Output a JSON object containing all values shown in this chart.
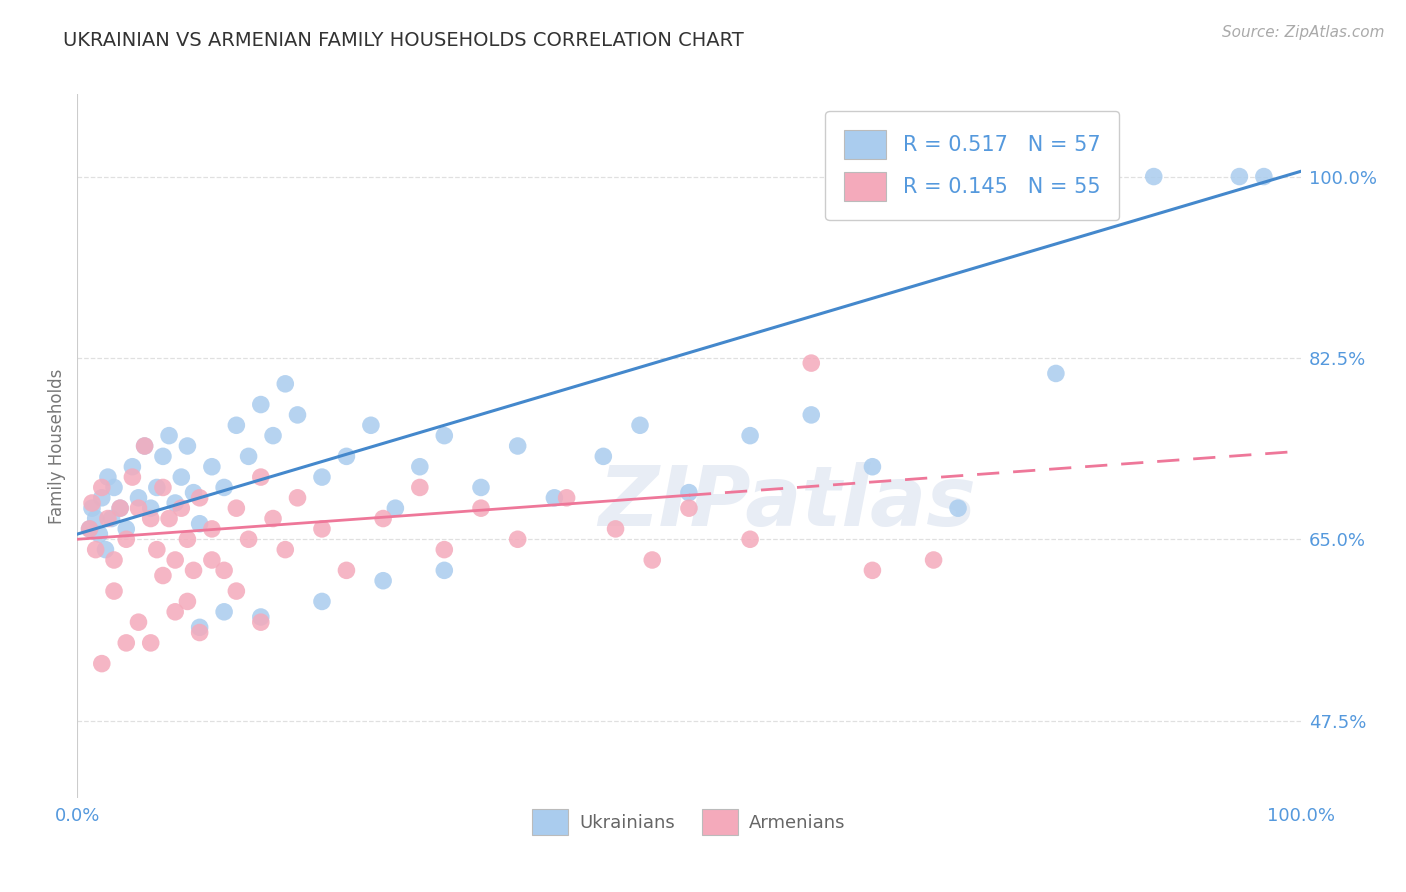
{
  "title": "UKRAINIAN VS ARMENIAN FAMILY HOUSEHOLDS CORRELATION CHART",
  "source": "Source: ZipAtlas.com",
  "ylabel": "Family Households",
  "xlim": [
    0,
    100
  ],
  "ylim": [
    40,
    108
  ],
  "yticks": [
    47.5,
    65.0,
    82.5,
    100.0
  ],
  "xtick_labels": [
    "0.0%",
    "100.0%"
  ],
  "ytick_labels": [
    "47.5%",
    "65.0%",
    "82.5%",
    "100.0%"
  ],
  "blue_R": 0.517,
  "blue_N": 57,
  "pink_R": 0.145,
  "pink_N": 55,
  "blue_color": "#AACCEE",
  "pink_color": "#F4AABB",
  "blue_line_color": "#4488CC",
  "pink_line_color": "#EE7799",
  "blue_line_y0": 65.5,
  "blue_line_y1": 100.5,
  "pink_line_y0": 65.0,
  "pink_line_y1": 73.5,
  "pink_solid_end": 50,
  "axis_text_color": "#5599DD",
  "ylabel_color": "#777777",
  "title_color": "#333333",
  "title_fontsize": 14,
  "grid_color": "#DDDDDD",
  "watermark_color": "#E8EDF5",
  "background_color": "#FFFFFF",
  "blue_x": [
    1.0,
    1.2,
    1.5,
    1.8,
    2.0,
    2.3,
    2.5,
    2.8,
    3.0,
    3.5,
    4.0,
    4.5,
    5.0,
    5.5,
    6.0,
    6.5,
    7.0,
    7.5,
    8.0,
    8.5,
    9.0,
    9.5,
    10.0,
    11.0,
    12.0,
    13.0,
    14.0,
    15.0,
    16.0,
    17.0,
    18.0,
    20.0,
    22.0,
    24.0,
    26.0,
    28.0,
    30.0,
    33.0,
    36.0,
    39.0,
    43.0,
    46.0,
    50.0,
    55.0,
    60.0,
    65.0,
    72.0,
    80.0,
    88.0,
    95.0,
    97.0,
    30.0,
    25.0,
    20.0,
    15.0,
    12.0,
    10.0
  ],
  "blue_y": [
    66.0,
    68.0,
    67.0,
    65.5,
    69.0,
    64.0,
    71.0,
    67.0,
    70.0,
    68.0,
    66.0,
    72.0,
    69.0,
    74.0,
    68.0,
    70.0,
    73.0,
    75.0,
    68.5,
    71.0,
    74.0,
    69.5,
    66.5,
    72.0,
    70.0,
    76.0,
    73.0,
    78.0,
    75.0,
    80.0,
    77.0,
    71.0,
    73.0,
    76.0,
    68.0,
    72.0,
    75.0,
    70.0,
    74.0,
    69.0,
    73.0,
    76.0,
    69.5,
    75.0,
    77.0,
    72.0,
    68.0,
    81.0,
    100.0,
    100.0,
    100.0,
    62.0,
    61.0,
    59.0,
    57.5,
    58.0,
    56.5
  ],
  "pink_x": [
    1.0,
    1.2,
    1.5,
    2.0,
    2.5,
    3.0,
    3.5,
    4.0,
    4.5,
    5.0,
    5.5,
    6.0,
    6.5,
    7.0,
    7.5,
    8.0,
    8.5,
    9.0,
    9.5,
    10.0,
    11.0,
    12.0,
    13.0,
    14.0,
    15.0,
    16.0,
    17.0,
    18.0,
    20.0,
    22.0,
    25.0,
    28.0,
    30.0,
    33.0,
    36.0,
    40.0,
    44.0,
    47.0,
    50.0,
    55.0,
    60.0,
    65.0,
    70.0,
    15.0,
    10.0,
    8.0,
    6.0,
    4.0,
    2.0,
    3.0,
    5.0,
    7.0,
    9.0,
    11.0,
    13.0
  ],
  "pink_y": [
    66.0,
    68.5,
    64.0,
    70.0,
    67.0,
    63.0,
    68.0,
    65.0,
    71.0,
    68.0,
    74.0,
    67.0,
    64.0,
    70.0,
    67.0,
    63.0,
    68.0,
    65.0,
    62.0,
    69.0,
    66.0,
    62.0,
    68.0,
    65.0,
    71.0,
    67.0,
    64.0,
    69.0,
    66.0,
    62.0,
    67.0,
    70.0,
    64.0,
    68.0,
    65.0,
    69.0,
    66.0,
    63.0,
    68.0,
    65.0,
    82.0,
    62.0,
    63.0,
    57.0,
    56.0,
    58.0,
    55.0,
    55.0,
    53.0,
    60.0,
    57.0,
    61.5,
    59.0,
    63.0,
    60.0
  ]
}
